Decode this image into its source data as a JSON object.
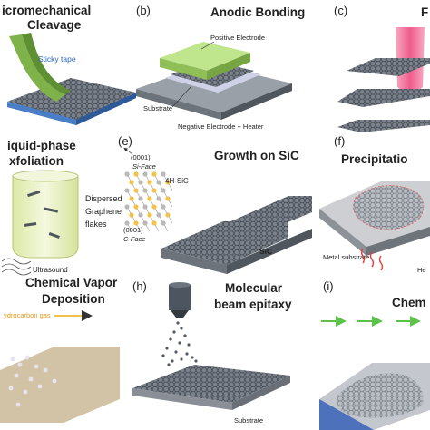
{
  "panels": [
    {
      "id": "a",
      "letter": "",
      "title_lines": [
        "icromechanical",
        "Cleavage"
      ],
      "labels": [
        "Sticky tape"
      ]
    },
    {
      "id": "b",
      "letter": "(b)",
      "title_lines": [
        "Anodic Bonding"
      ],
      "labels": [
        "Positive Electrode",
        "Substrate",
        "Negative Electrode + Heater"
      ]
    },
    {
      "id": "c",
      "letter": "(c)",
      "title_lines": [
        "F"
      ],
      "labels": []
    },
    {
      "id": "d",
      "letter": "",
      "title_lines": [
        "iquid-phase",
        "xfoliation"
      ],
      "labels": [
        "Dispersed",
        "Graphene",
        "flakes",
        "Ultrasound"
      ]
    },
    {
      "id": "e",
      "letter": "(e)",
      "title_lines": [
        "Growth on SiC"
      ],
      "labels": [
        "(0001)",
        "Si-Face",
        "4H-SiC",
        "(0001)",
        "C-Face",
        "SiC"
      ]
    },
    {
      "id": "f",
      "letter": "(f)",
      "title_lines": [
        "Precipitatio"
      ],
      "labels": [
        "Metal substrate",
        "He"
      ]
    },
    {
      "id": "g",
      "letter": "",
      "title_lines": [
        "Chemical Vapor",
        "Deposition"
      ],
      "labels": [
        "ydrocarbon gas"
      ]
    },
    {
      "id": "h",
      "letter": "(h)",
      "title_lines": [
        "Molecular",
        "beam epitaxy"
      ],
      "labels": [
        "Substrate"
      ]
    },
    {
      "id": "i",
      "letter": "(i)",
      "title_lines": [
        "Chem"
      ],
      "labels": []
    }
  ],
  "colors": {
    "graphene": "#6f7680",
    "slab_top": "#c9ccd1",
    "slab_side": "#8a8f97",
    "tape": "#7fb34a",
    "electrode": "#b9e08a",
    "laser": "#f27aa0",
    "sic_atom_yellow": "#f2c24a",
    "sic_atom_gray": "#b9b9b9",
    "beaker": "#e9f1c7",
    "heat": "#e0403a",
    "cvd_gas": "#f3c14b",
    "arrow_green": "#5cc24a",
    "substrate_blue": "#3a62b8"
  }
}
